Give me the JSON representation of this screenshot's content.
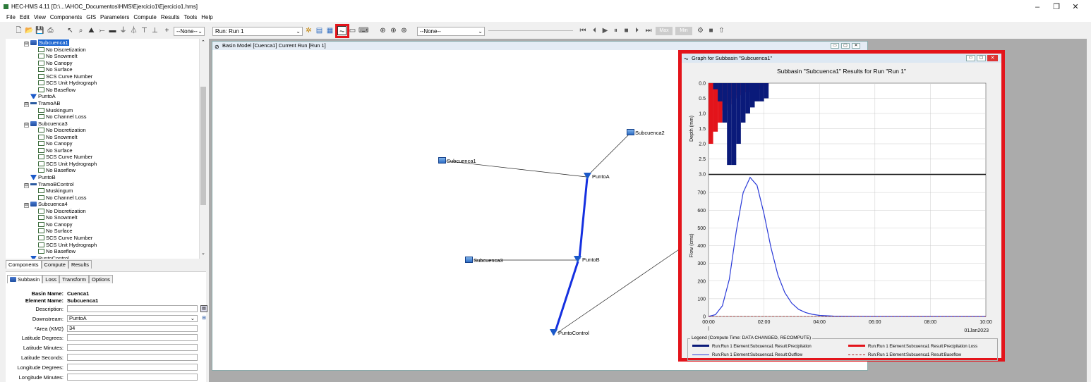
{
  "app": {
    "title": "HEC-HMS 4.11 [D:\\...\\AHOC_Documentos\\HMS\\Ejercicio1\\Ejercicio1.hms]",
    "window_controls": [
      "–",
      "❐",
      "✕"
    ]
  },
  "menu": [
    "File",
    "Edit",
    "View",
    "Components",
    "GIS",
    "Parameters",
    "Compute",
    "Results",
    "Tools",
    "Help"
  ],
  "toolbar": {
    "selector_none": "--None--",
    "run_selector": "Run: Run 1",
    "second_none": "--None--",
    "max_label": "Max",
    "min_label": "Min"
  },
  "tree": {
    "items": [
      {
        "label": "Subcuenca1",
        "icon": "basin",
        "level": 1,
        "selected": true,
        "expand": "⊟"
      },
      {
        "label": "No Discretization",
        "icon": "method",
        "level": 2
      },
      {
        "label": "No Snowmelt",
        "icon": "method",
        "level": 2
      },
      {
        "label": "No Canopy",
        "icon": "method",
        "level": 2
      },
      {
        "label": "No Surface",
        "icon": "method",
        "level": 2
      },
      {
        "label": "SCS Curve Number",
        "icon": "method",
        "level": 2
      },
      {
        "label": "SCS Unit Hydrograph",
        "icon": "method",
        "level": 2
      },
      {
        "label": "No Baseflow",
        "icon": "method",
        "level": 2
      },
      {
        "label": "PuntoA",
        "icon": "junc",
        "level": 1
      },
      {
        "label": "TramoAB",
        "icon": "reach",
        "level": 1,
        "expand": "⊟"
      },
      {
        "label": "Muskingum",
        "icon": "method",
        "level": 2
      },
      {
        "label": "No Channel Loss",
        "icon": "method",
        "level": 2
      },
      {
        "label": "Subcuenca3",
        "icon": "basin",
        "level": 1,
        "expand": "⊟"
      },
      {
        "label": "No Discretization",
        "icon": "method",
        "level": 2
      },
      {
        "label": "No Snowmelt",
        "icon": "method",
        "level": 2
      },
      {
        "label": "No Canopy",
        "icon": "method",
        "level": 2
      },
      {
        "label": "No Surface",
        "icon": "method",
        "level": 2
      },
      {
        "label": "SCS Curve Number",
        "icon": "method",
        "level": 2
      },
      {
        "label": "SCS Unit Hydrograph",
        "icon": "method",
        "level": 2
      },
      {
        "label": "No Baseflow",
        "icon": "method",
        "level": 2
      },
      {
        "label": "PuntoB",
        "icon": "junc",
        "level": 1
      },
      {
        "label": "TramoBControl",
        "icon": "reach",
        "level": 1,
        "expand": "⊟"
      },
      {
        "label": "Muskingum",
        "icon": "method",
        "level": 2
      },
      {
        "label": "No Channel Loss",
        "icon": "method",
        "level": 2
      },
      {
        "label": "Subcuenca4",
        "icon": "basin",
        "level": 1,
        "expand": "⊟"
      },
      {
        "label": "No Discretization",
        "icon": "method",
        "level": 2
      },
      {
        "label": "No Snowmelt",
        "icon": "method",
        "level": 2
      },
      {
        "label": "No Canopy",
        "icon": "method",
        "level": 2
      },
      {
        "label": "No Surface",
        "icon": "method",
        "level": 2
      },
      {
        "label": "SCS Curve Number",
        "icon": "method",
        "level": 2
      },
      {
        "label": "SCS Unit Hydrograph",
        "icon": "method",
        "level": 2
      },
      {
        "label": "No Baseflow",
        "icon": "method",
        "level": 2
      },
      {
        "label": "PuntoControl",
        "icon": "junc",
        "level": 1
      }
    ]
  },
  "explorer_tabs": [
    "Components",
    "Compute",
    "Results"
  ],
  "props": {
    "tabs": [
      "Subbasin",
      "Loss",
      "Transform",
      "Options"
    ],
    "basin_name_label": "Basin Name:",
    "basin_name": "Cuenca1",
    "element_name_label": "Element Name:",
    "element_name": "Subcuenca1",
    "fields": [
      {
        "label": "Description:",
        "value": ""
      },
      {
        "label": "Downstream:",
        "value": "PuntoA"
      },
      {
        "label": "*Area (KM2)",
        "value": "34"
      },
      {
        "label": "Latitude Degrees:",
        "value": ""
      },
      {
        "label": "Latitude Minutes:",
        "value": ""
      },
      {
        "label": "Latitude Seconds:",
        "value": ""
      },
      {
        "label": "Longitude Degrees:",
        "value": ""
      },
      {
        "label": "Longitude Minutes:",
        "value": ""
      }
    ]
  },
  "basin_window": {
    "title": "Basin Model [Cuenca1] Current Run [Run 1]",
    "nodes": {
      "subcuenca1": "Subcuenca1",
      "subcuenca2": "Subcuenca2",
      "subcuenca3": "Subcuenca3",
      "puntoA": "PuntoA",
      "puntoB": "PuntoB",
      "puntoControl": "PuntoControl"
    }
  },
  "graph_window": {
    "title": "Graph for Subbasin \"Subcuenca1\"",
    "chart_title": "Subbasin \"Subcuenca1\" Results for Run \"Run 1\"",
    "date_label": "01Jan2023",
    "legend_title": "Legend (Compute Time: DATA CHANGED, RECOMPUTE)",
    "legend": [
      {
        "label": "Run:Run 1 Element:Subcuenca1 Result:Precipitation",
        "color": "#0a1a7a",
        "style": "solid-thick"
      },
      {
        "label": "Run:Run 1 Element:Subcuenca1 Result:Precipitation Loss",
        "color": "#e3141b",
        "style": "solid-thick"
      },
      {
        "label": "Run:Run 1 Element:Subcuenca1 Result:Outflow",
        "color": "#2a3ad8",
        "style": "solid"
      },
      {
        "label": "Run:Run 1 Element:Subcuenca1 Result:Baseflow",
        "color": "#a02020",
        "style": "dashed"
      }
    ]
  },
  "chart_data": [
    {
      "type": "bar",
      "title": "",
      "ylabel": "Depth (mm)",
      "ylim": [
        3.0,
        0.0
      ],
      "y_ticks": [
        "0.0",
        "0.5",
        "1.0",
        "1.5",
        "2.0",
        "2.5",
        "3.0"
      ],
      "inverted": true,
      "series": [
        {
          "name": "Precipitation",
          "color": "#0a1a7a",
          "x": [
            "00:00",
            "00:10",
            "00:20",
            "00:30",
            "00:40",
            "00:50",
            "01:00",
            "01:10",
            "01:20",
            "01:30",
            "01:40",
            "01:50",
            "02:00"
          ],
          "values": [
            0.0,
            0.2,
            0.6,
            1.3,
            2.7,
            2.7,
            2.0,
            1.3,
            1.0,
            0.8,
            0.6,
            0.6,
            0.5
          ]
        },
        {
          "name": "Precipitation Loss",
          "color": "#e3141b",
          "x": [
            "00:00",
            "00:10",
            "00:20",
            "00:30",
            "00:40",
            "00:50",
            "01:00",
            "01:10",
            "01:20",
            "01:30",
            "01:40",
            "01:50",
            "02:00"
          ],
          "values": [
            2.0,
            1.6,
            1.3,
            0.9,
            0.7,
            0.5,
            0.4,
            0.3,
            0.3,
            0.2,
            0.2,
            0.2,
            0.1
          ]
        }
      ]
    },
    {
      "type": "line",
      "title": "",
      "ylabel": "Flow (cms)",
      "xlabel": "",
      "ylim": [
        0,
        800
      ],
      "y_ticks": [
        "0",
        "100",
        "200",
        "300",
        "400",
        "500",
        "600",
        "700"
      ],
      "x_ticks": [
        "00:00",
        "02:00",
        "04:00",
        "06:00",
        "08:00",
        "10:00"
      ],
      "series": [
        {
          "name": "Outflow",
          "color": "#2a3ad8",
          "x": [
            0.0,
            0.25,
            0.5,
            0.75,
            1.0,
            1.25,
            1.5,
            1.75,
            2.0,
            2.25,
            2.5,
            2.75,
            3.0,
            3.25,
            3.5,
            3.75,
            4.0,
            4.5,
            5.0,
            6.0,
            8.0,
            10.0
          ],
          "values": [
            0,
            10,
            60,
            210,
            480,
            700,
            785,
            740,
            580,
            390,
            235,
            135,
            75,
            40,
            22,
            12,
            6,
            2,
            1,
            0,
            0,
            0
          ]
        },
        {
          "name": "Baseflow",
          "color": "#a02020",
          "x": [
            0.0,
            10.0
          ],
          "values": [
            0,
            0
          ]
        }
      ]
    }
  ]
}
